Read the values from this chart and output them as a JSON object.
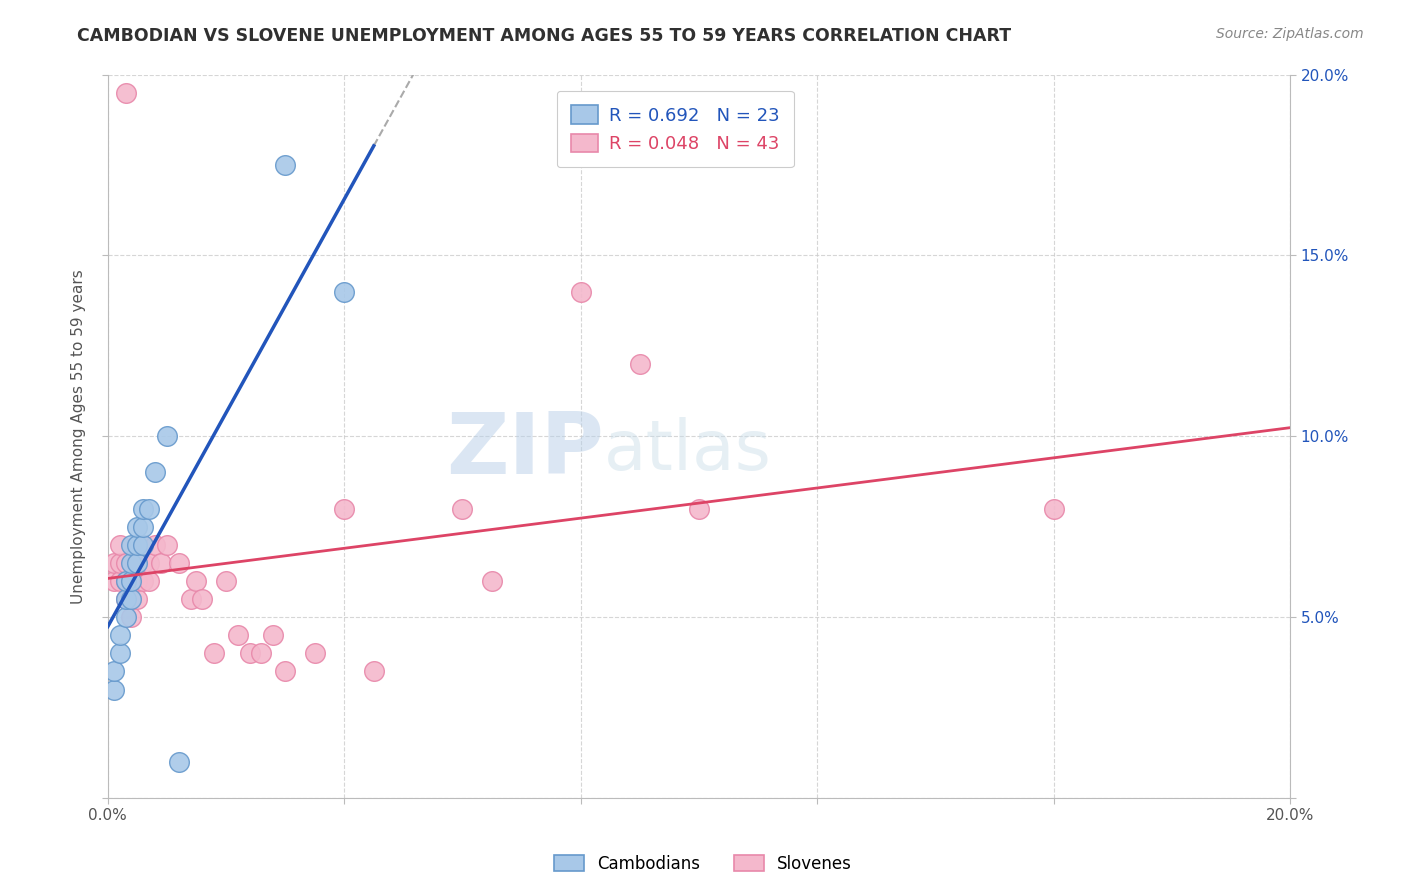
{
  "title": "CAMBODIAN VS SLOVENE UNEMPLOYMENT AMONG AGES 55 TO 59 YEARS CORRELATION CHART",
  "source": "Source: ZipAtlas.com",
  "ylabel": "Unemployment Among Ages 55 to 59 years",
  "xlim": [
    0.0,
    0.2
  ],
  "ylim": [
    0.0,
    0.2
  ],
  "xticks": [
    0.0,
    0.04,
    0.08,
    0.12,
    0.16,
    0.2
  ],
  "yticks": [
    0.0,
    0.05,
    0.1,
    0.15,
    0.2
  ],
  "xticklabels": [
    "0.0%",
    "",
    "",
    "",
    "",
    "20.0%"
  ],
  "left_yticklabels": [
    "",
    "",
    "",
    "",
    ""
  ],
  "right_yticklabels": [
    "",
    "5.0%",
    "10.0%",
    "15.0%",
    "20.0%"
  ],
  "cambodian_color": "#a8c8e8",
  "slovene_color": "#f4b8cc",
  "cambodian_edge": "#6699cc",
  "slovene_edge": "#e888aa",
  "cambodian_line_color": "#2255bb",
  "slovene_line_color": "#dd4466",
  "R_cambodian": 0.692,
  "N_cambodian": 23,
  "R_slovene": 0.048,
  "N_slovene": 43,
  "cambodian_points": [
    [
      0.001,
      0.03
    ],
    [
      0.001,
      0.035
    ],
    [
      0.002,
      0.04
    ],
    [
      0.002,
      0.045
    ],
    [
      0.003,
      0.05
    ],
    [
      0.003,
      0.055
    ],
    [
      0.003,
      0.06
    ],
    [
      0.004,
      0.055
    ],
    [
      0.004,
      0.06
    ],
    [
      0.004,
      0.065
    ],
    [
      0.004,
      0.07
    ],
    [
      0.005,
      0.065
    ],
    [
      0.005,
      0.07
    ],
    [
      0.005,
      0.075
    ],
    [
      0.006,
      0.07
    ],
    [
      0.006,
      0.075
    ],
    [
      0.006,
      0.08
    ],
    [
      0.007,
      0.08
    ],
    [
      0.008,
      0.09
    ],
    [
      0.01,
      0.1
    ],
    [
      0.012,
      0.01
    ],
    [
      0.03,
      0.175
    ],
    [
      0.04,
      0.14
    ]
  ],
  "slovene_points": [
    [
      0.001,
      0.06
    ],
    [
      0.001,
      0.065
    ],
    [
      0.002,
      0.06
    ],
    [
      0.002,
      0.065
    ],
    [
      0.002,
      0.07
    ],
    [
      0.003,
      0.055
    ],
    [
      0.003,
      0.06
    ],
    [
      0.003,
      0.065
    ],
    [
      0.004,
      0.05
    ],
    [
      0.004,
      0.055
    ],
    [
      0.004,
      0.06
    ],
    [
      0.005,
      0.055
    ],
    [
      0.005,
      0.06
    ],
    [
      0.005,
      0.065
    ],
    [
      0.006,
      0.06
    ],
    [
      0.006,
      0.065
    ],
    [
      0.006,
      0.07
    ],
    [
      0.007,
      0.06
    ],
    [
      0.007,
      0.065
    ],
    [
      0.008,
      0.07
    ],
    [
      0.009,
      0.065
    ],
    [
      0.01,
      0.07
    ],
    [
      0.012,
      0.065
    ],
    [
      0.014,
      0.055
    ],
    [
      0.015,
      0.06
    ],
    [
      0.016,
      0.055
    ],
    [
      0.018,
      0.04
    ],
    [
      0.02,
      0.06
    ],
    [
      0.022,
      0.045
    ],
    [
      0.024,
      0.04
    ],
    [
      0.026,
      0.04
    ],
    [
      0.028,
      0.045
    ],
    [
      0.03,
      0.035
    ],
    [
      0.035,
      0.04
    ],
    [
      0.04,
      0.08
    ],
    [
      0.045,
      0.035
    ],
    [
      0.06,
      0.08
    ],
    [
      0.065,
      0.06
    ],
    [
      0.08,
      0.14
    ],
    [
      0.09,
      0.12
    ],
    [
      0.1,
      0.08
    ],
    [
      0.16,
      0.08
    ],
    [
      0.003,
      0.195
    ]
  ],
  "watermark_zip": "ZIP",
  "watermark_atlas": "atlas",
  "background_color": "#ffffff",
  "grid_color": "#cccccc",
  "title_color": "#303030"
}
